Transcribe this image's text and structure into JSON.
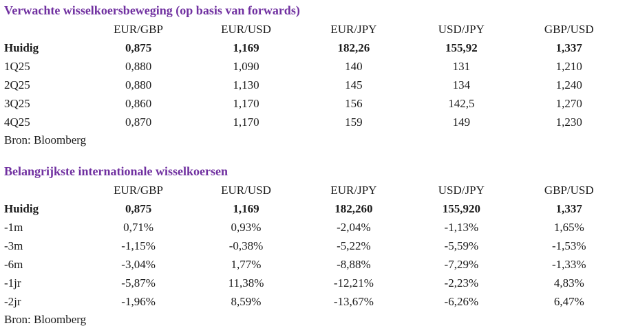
{
  "accent_color": "#7030A0",
  "chart_data": [
    {
      "type": "table",
      "title": "Verwachte wisselkoersbeweging (op basis van forwards)",
      "columns": [
        "EUR/GBP",
        "EUR/USD",
        "EUR/JPY",
        "USD/JPY",
        "GBP/USD"
      ],
      "rows": [
        {
          "label": "Huidig",
          "bold": true,
          "values": [
            "0,875",
            "1,169",
            "182,26",
            "155,92",
            "1,337"
          ]
        },
        {
          "label": "1Q25",
          "bold": false,
          "values": [
            "0,880",
            "1,090",
            "140",
            "131",
            "1,210"
          ]
        },
        {
          "label": "2Q25",
          "bold": false,
          "values": [
            "0,880",
            "1,130",
            "145",
            "134",
            "1,240"
          ]
        },
        {
          "label": "3Q25",
          "bold": false,
          "values": [
            "0,860",
            "1,170",
            "156",
            "142,5",
            "1,270"
          ]
        },
        {
          "label": "4Q25",
          "bold": false,
          "values": [
            "0,870",
            "1,170",
            "159",
            "149",
            "1,230"
          ]
        }
      ],
      "source": "Bron: Bloomberg"
    },
    {
      "type": "table",
      "title": "Belangrijkste internationale wisselkoersen",
      "columns": [
        "EUR/GBP",
        "EUR/USD",
        "EUR/JPY",
        "USD/JPY",
        "GBP/USD"
      ],
      "rows": [
        {
          "label": "Huidig",
          "bold": true,
          "values": [
            "0,875",
            "1,169",
            "182,260",
            "155,920",
            "1,337"
          ]
        },
        {
          "label": "-1m",
          "bold": false,
          "values": [
            "0,71%",
            "0,93%",
            "-2,04%",
            "-1,13%",
            "1,65%"
          ]
        },
        {
          "label": "-3m",
          "bold": false,
          "values": [
            "-1,15%",
            "-0,38%",
            "-5,22%",
            "-5,59%",
            "-1,53%"
          ]
        },
        {
          "label": "-6m",
          "bold": false,
          "values": [
            "-3,04%",
            "1,77%",
            "-8,88%",
            "-7,29%",
            "-1,33%"
          ]
        },
        {
          "label": "-1jr",
          "bold": false,
          "values": [
            "-5,87%",
            "11,38%",
            "-12,21%",
            "-2,23%",
            "4,83%"
          ]
        },
        {
          "label": "-2jr",
          "bold": false,
          "values": [
            "-1,96%",
            "8,59%",
            "-13,67%",
            "-6,26%",
            "6,47%"
          ]
        }
      ],
      "source": "Bron: Bloomberg"
    }
  ]
}
